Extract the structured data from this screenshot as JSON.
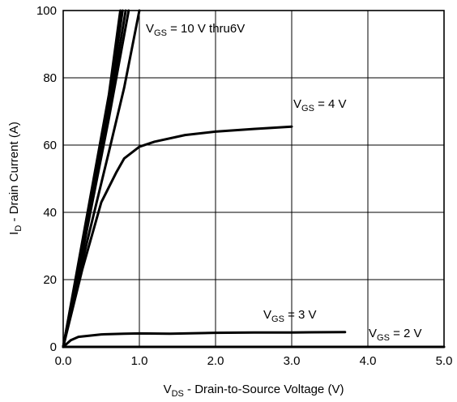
{
  "chart_data": {
    "type": "line",
    "xlabel": {
      "main": "V",
      "sub": "DS",
      "rest": " - Drain-to-Source Voltage (V)"
    },
    "ylabel": {
      "main": "I",
      "sub": "D",
      "rest": " - Drain Current (A)"
    },
    "xlim": [
      0,
      5
    ],
    "ylim": [
      0,
      100
    ],
    "xticks": [
      "0.0",
      "1.0",
      "2.0",
      "3.0",
      "4.0",
      "5.0"
    ],
    "yticks": [
      "0",
      "20",
      "40",
      "60",
      "80",
      "100"
    ],
    "grid": true,
    "annotations": [
      {
        "main": "V",
        "sub": "GS",
        "rest": " = 10 V thru6V"
      },
      {
        "main": "V",
        "sub": "GS",
        "rest": " = 4 V"
      },
      {
        "main": "V",
        "sub": "GS",
        "rest": " = 3 V"
      },
      {
        "main": "V",
        "sub": "GS",
        "rest": " = 2 V"
      }
    ],
    "series": [
      {
        "points": [
          [
            0,
            0
          ],
          [
            0.2,
            25
          ],
          [
            0.4,
            50
          ],
          [
            0.6,
            75
          ],
          [
            0.75,
            100
          ]
        ]
      },
      {
        "points": [
          [
            0,
            0
          ],
          [
            0.2,
            24
          ],
          [
            0.4,
            48
          ],
          [
            0.6,
            72
          ],
          [
            0.78,
            100
          ]
        ]
      },
      {
        "points": [
          [
            0,
            0
          ],
          [
            0.2,
            23
          ],
          [
            0.4,
            47
          ],
          [
            0.6,
            70
          ],
          [
            0.82,
            100
          ]
        ]
      },
      {
        "points": [
          [
            0,
            0
          ],
          [
            0.2,
            22
          ],
          [
            0.4,
            45
          ],
          [
            0.6,
            68
          ],
          [
            0.86,
            100
          ]
        ]
      },
      {
        "points": [
          [
            0,
            0
          ],
          [
            0.3,
            30
          ],
          [
            0.6,
            58
          ],
          [
            0.8,
            77
          ],
          [
            1.0,
            100
          ]
        ]
      },
      {
        "points": [
          [
            0,
            0
          ],
          [
            0.25,
            23
          ],
          [
            0.5,
            43
          ],
          [
            0.7,
            52
          ],
          [
            0.8,
            56
          ],
          [
            1.0,
            59.5
          ],
          [
            1.2,
            61
          ],
          [
            1.6,
            63
          ],
          [
            2.0,
            64
          ],
          [
            2.5,
            64.8
          ],
          [
            3.0,
            65.5
          ]
        ]
      },
      {
        "points": [
          [
            0,
            0
          ],
          [
            0.1,
            2
          ],
          [
            0.2,
            3
          ],
          [
            0.5,
            3.7
          ],
          [
            0.8,
            3.9
          ],
          [
            1.0,
            4.0
          ],
          [
            1.4,
            3.9
          ],
          [
            2.0,
            4.2
          ],
          [
            2.5,
            4.3
          ],
          [
            3.0,
            4.3
          ],
          [
            3.7,
            4.4
          ]
        ]
      },
      {
        "points": [
          [
            0,
            0
          ],
          [
            5.0,
            0
          ]
        ]
      }
    ]
  }
}
